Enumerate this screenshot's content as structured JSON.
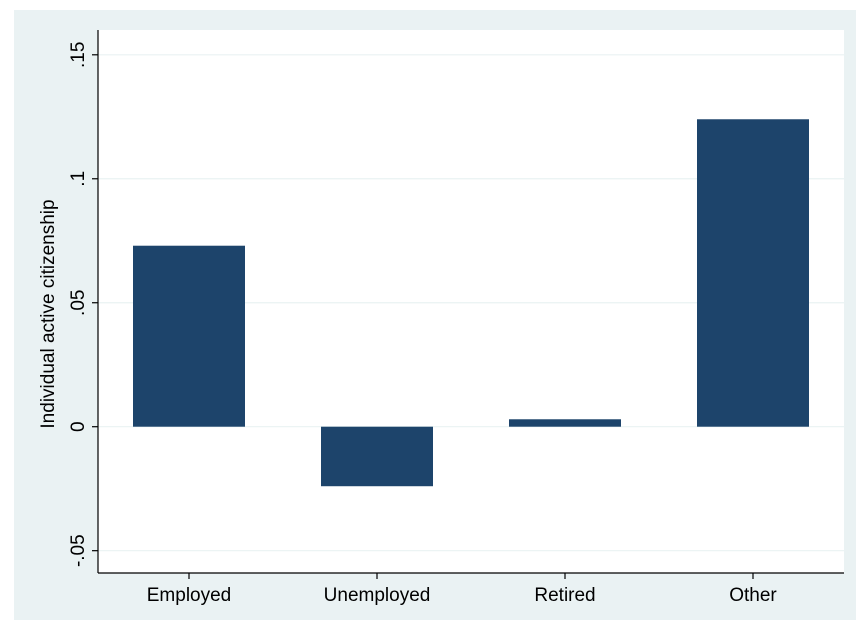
{
  "chart_data": {
    "type": "bar",
    "title": "",
    "xlabel": "",
    "ylabel": "Individual active citizenship",
    "categories": [
      "Employed",
      "Unemployed",
      "Retired",
      "Other"
    ],
    "values": [
      0.073,
      -0.024,
      0.003,
      0.124
    ],
    "ylim": [
      -0.059,
      0.16
    ],
    "yticks": [
      -0.05,
      0,
      0.05,
      0.1,
      0.15
    ],
    "ytick_labels": [
      "-.05",
      "0",
      ".05",
      ".1",
      ".15"
    ],
    "grid": true,
    "legend": "none",
    "colors": {
      "bar": "#1d446b",
      "outer_background": "#eaf2f3",
      "plot_background": "#ffffff",
      "gridline": "#eaf2f3",
      "axis": "#000000"
    }
  }
}
